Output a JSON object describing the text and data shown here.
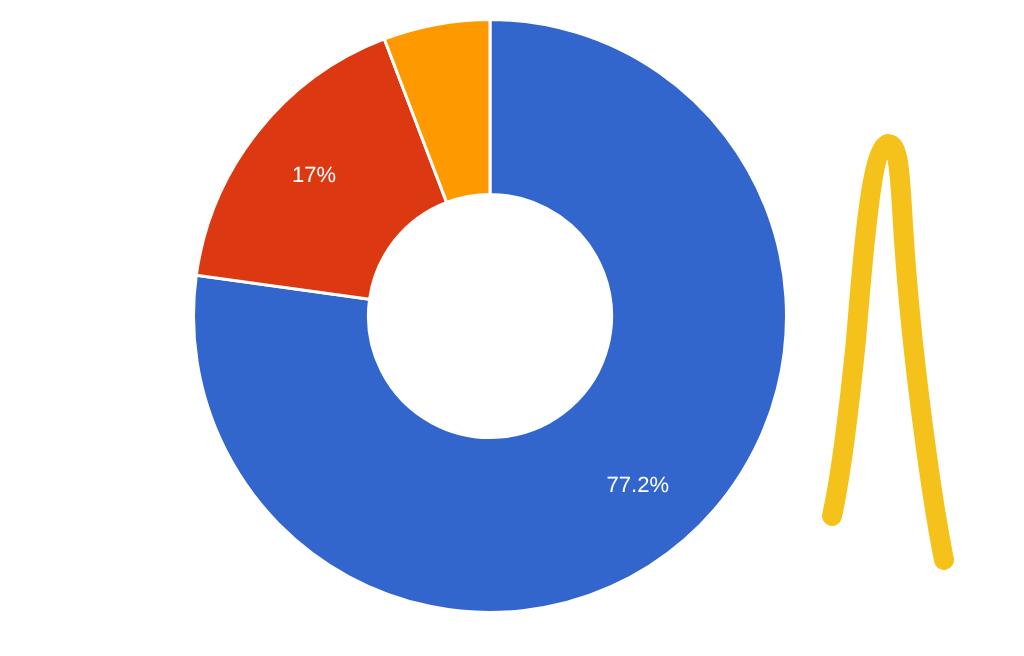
{
  "chart_data": {
    "type": "donut",
    "categories": [
      null,
      null,
      null
    ],
    "values": [
      77.2,
      17,
      5.8
    ],
    "colors": [
      "#3366cc",
      "#dc3912",
      "#ff9900"
    ],
    "value_labels": [
      "77.2%",
      "17%",
      null
    ],
    "legend": false
  }
}
